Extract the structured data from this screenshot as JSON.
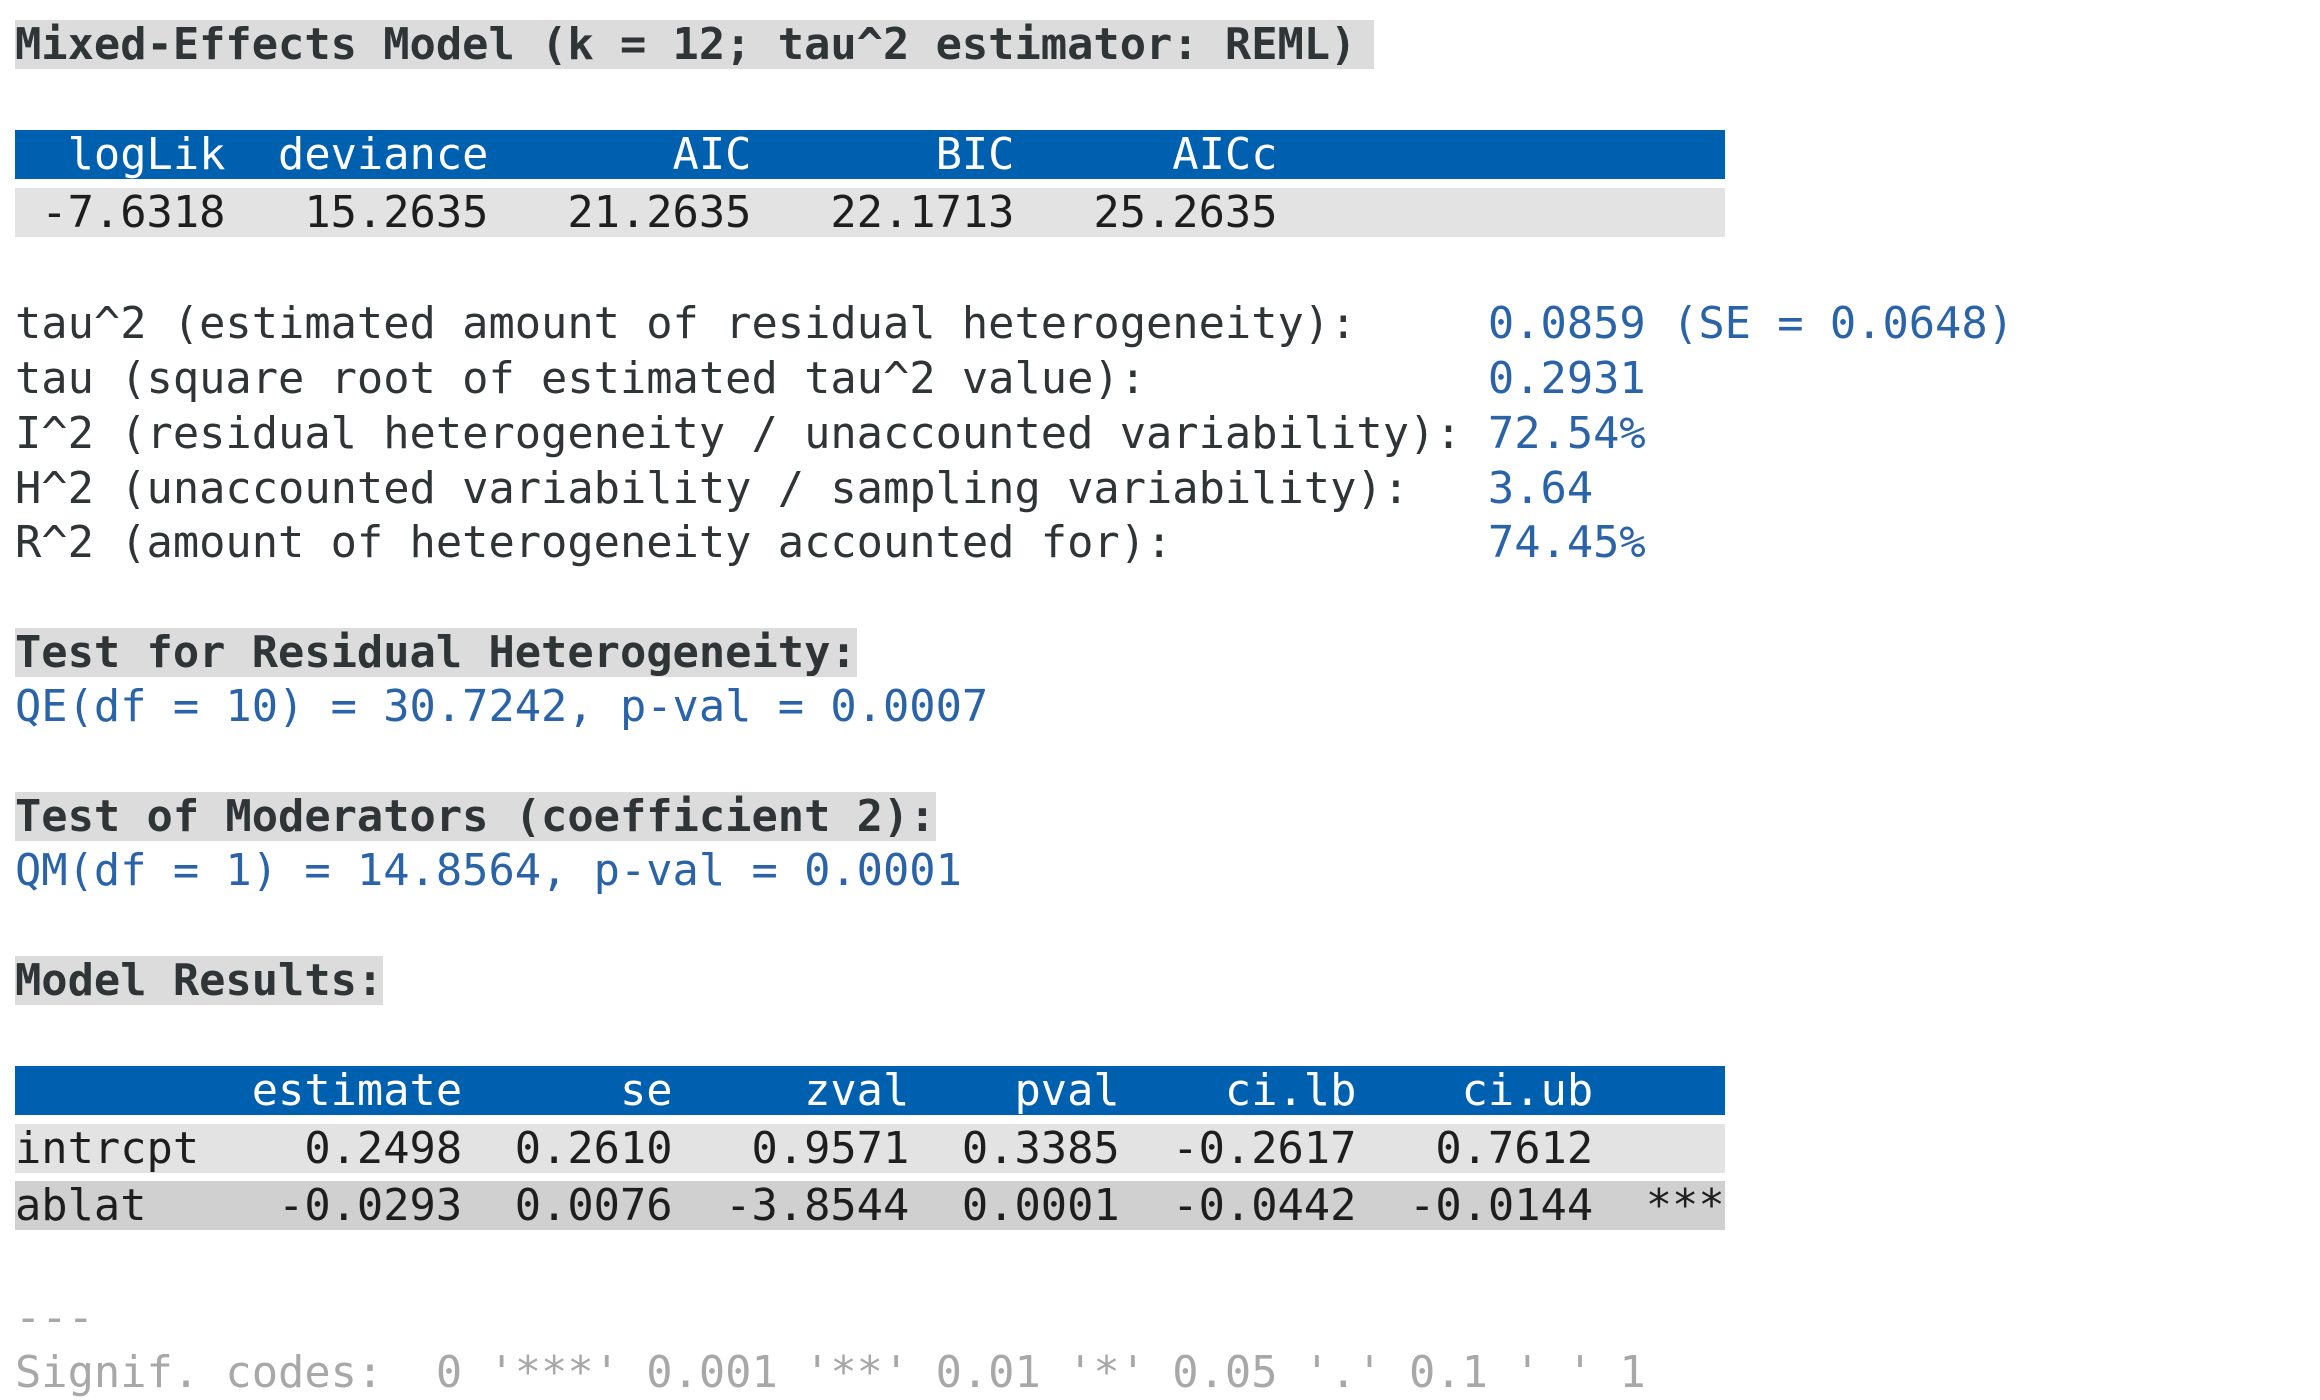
{
  "title": "Mixed-Effects Model (k = 12; tau^2 estimator: REML)",
  "fit_table": {
    "header": "  logLik  deviance       AIC       BIC      AICc  ",
    "row": " -7.6318   15.2635   21.2635   22.1713   25.2635  "
  },
  "heterogeneity": [
    {
      "label": "tau^2 (estimated amount of residual heterogeneity):",
      "value": "0.0859 (SE = 0.0648)"
    },
    {
      "label": "tau (square root of estimated tau^2 value):",
      "value": "0.2931"
    },
    {
      "label": "I^2 (residual heterogeneity / unaccounted variability):",
      "value": "72.54%"
    },
    {
      "label": "H^2 (unaccounted variability / sampling variability):",
      "value": "3.64"
    },
    {
      "label": "R^2 (amount of heterogeneity accounted for):",
      "value": "74.45%"
    }
  ],
  "residual_test": {
    "heading": "Test for Residual Heterogeneity:",
    "result": "QE(df = 10) = 30.7242, p-val = 0.0007"
  },
  "moderator_test": {
    "heading": "Test of Moderators (coefficient 2):",
    "result": "QM(df = 1) = 14.8564, p-val = 0.0001"
  },
  "model_results": {
    "heading": "Model Results:",
    "header": "         estimate      se     zval    pval    ci.lb    ci.ub     ",
    "rows": [
      "intrcpt    0.2498  0.2610   0.9571  0.3385  -0.2617   0.7612     ",
      "ablat     -0.0293  0.0076  -3.8544  0.0001  -0.0442  -0.0144  ***"
    ]
  },
  "footer": {
    "separator": "---",
    "signif_codes": "Signif. codes:  0 '***' 0.001 '**' 0.01 '*' 0.05 '.' 0.1 ' ' 1"
  },
  "colors": {
    "header_bg": "#0060b0",
    "value_text": "#2a63a8",
    "heading_bg": "#dcdcdc"
  }
}
